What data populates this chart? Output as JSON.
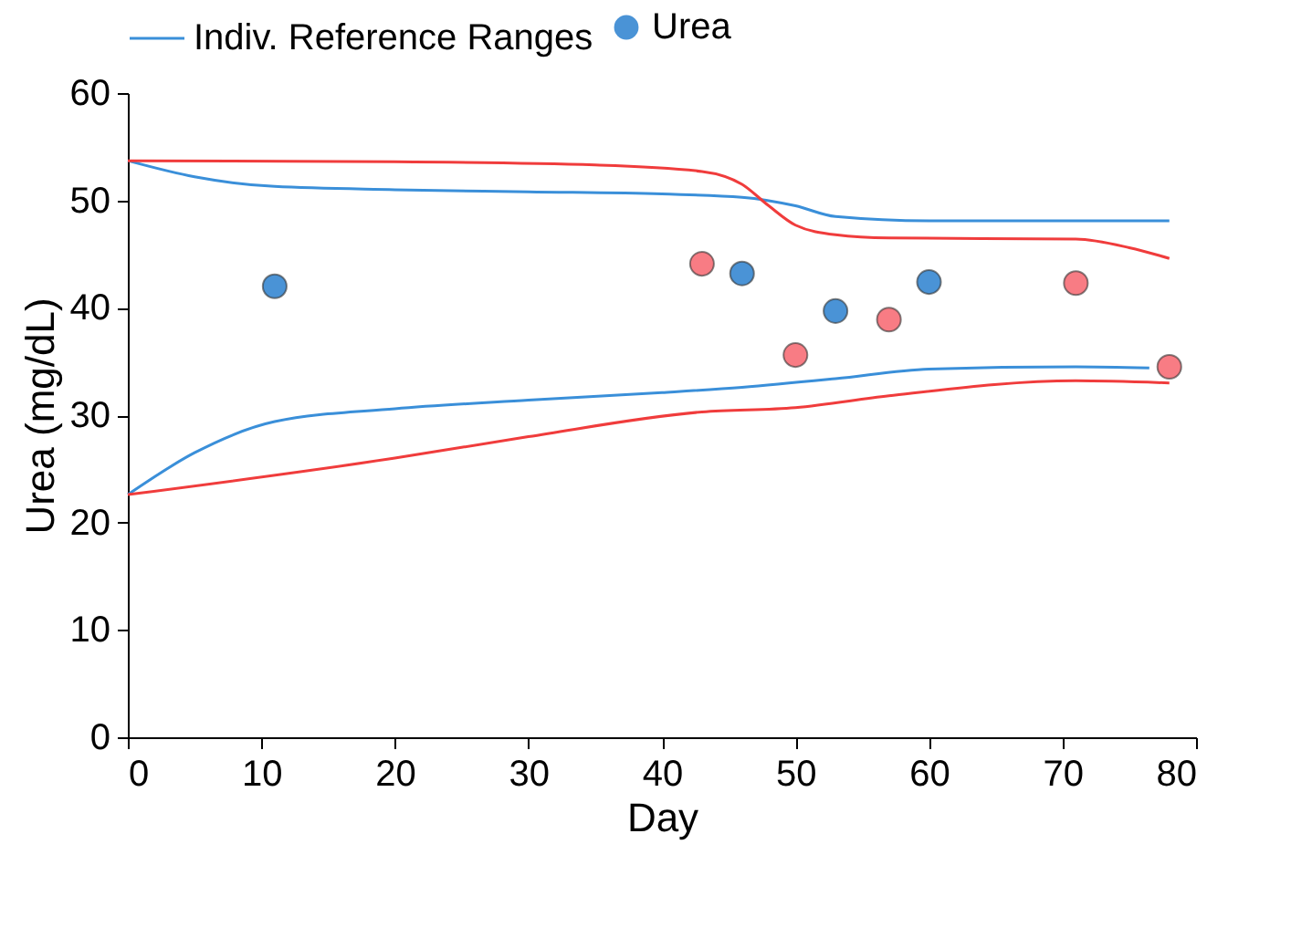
{
  "chart_data": {
    "type": "line",
    "xlabel": "Day",
    "ylabel": "Urea (mg/dL)",
    "xlim": [
      0,
      80
    ],
    "xticks": [
      0,
      10,
      20,
      30,
      40,
      50,
      60,
      70,
      80
    ],
    "ylim": [
      0,
      60
    ],
    "yticks": [
      0,
      10,
      20,
      30,
      40,
      50,
      60
    ],
    "grid": false,
    "legend": "top",
    "series": [
      {
        "name": "Indiv. Reference Ranges",
        "color": "#3a8fd9",
        "x": [
          0,
          5,
          11,
          20,
          30,
          40,
          46,
          50,
          53,
          60,
          70,
          78
        ],
        "values": [
          53.7,
          52.2,
          51.3,
          51.0,
          50.8,
          50.6,
          50.3,
          49.5,
          48.5,
          48.1,
          48.1,
          48.1
        ]
      },
      {
        "color": "#3a8fd9",
        "x": [
          0,
          5,
          11,
          20,
          30,
          40,
          46,
          53,
          60,
          71,
          76.5
        ],
        "values": [
          22.6,
          26.5,
          29.4,
          30.6,
          31.4,
          32.1,
          32.6,
          33.4,
          34.3,
          34.5,
          34.4
        ]
      },
      {
        "color": "#f03c3c",
        "x": [
          0,
          20,
          35,
          43,
          46,
          48,
          50,
          53,
          57,
          71,
          75,
          78
        ],
        "values": [
          53.7,
          53.6,
          53.3,
          52.7,
          51.5,
          49.5,
          47.7,
          46.8,
          46.5,
          46.4,
          45.6,
          44.6
        ]
      },
      {
        "color": "#f03c3c",
        "x": [
          0,
          20,
          30,
          43,
          50,
          57,
          71,
          78
        ],
        "values": [
          22.6,
          26.0,
          28.0,
          30.3,
          30.7,
          31.8,
          33.2,
          33.0
        ]
      },
      {
        "name": "Urea",
        "type": "scatter",
        "marker": "circle",
        "color": "#4a93d6",
        "x": [
          11,
          46,
          53,
          60
        ],
        "values": [
          42.0,
          43.2,
          39.7,
          42.4
        ]
      },
      {
        "type": "scatter",
        "marker": "circle",
        "color": "#f87c84",
        "x": [
          43,
          50,
          57,
          71,
          78
        ],
        "values": [
          44.1,
          35.6,
          38.9,
          42.3,
          34.5
        ]
      }
    ]
  }
}
